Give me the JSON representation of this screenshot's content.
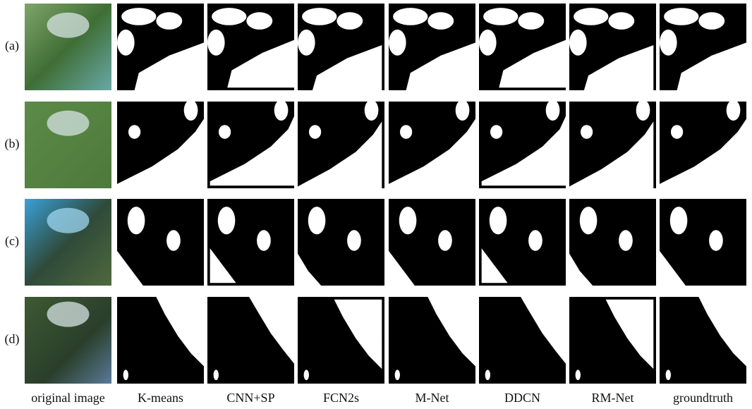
{
  "row_labels": [
    "(a)",
    "(b)",
    "(c)",
    "(d)"
  ],
  "column_labels": [
    "original image",
    "K-means",
    "CNN+SP",
    "FCN2s",
    "M-Net",
    "DDCN",
    "RM-Net",
    "groundtruth"
  ]
}
